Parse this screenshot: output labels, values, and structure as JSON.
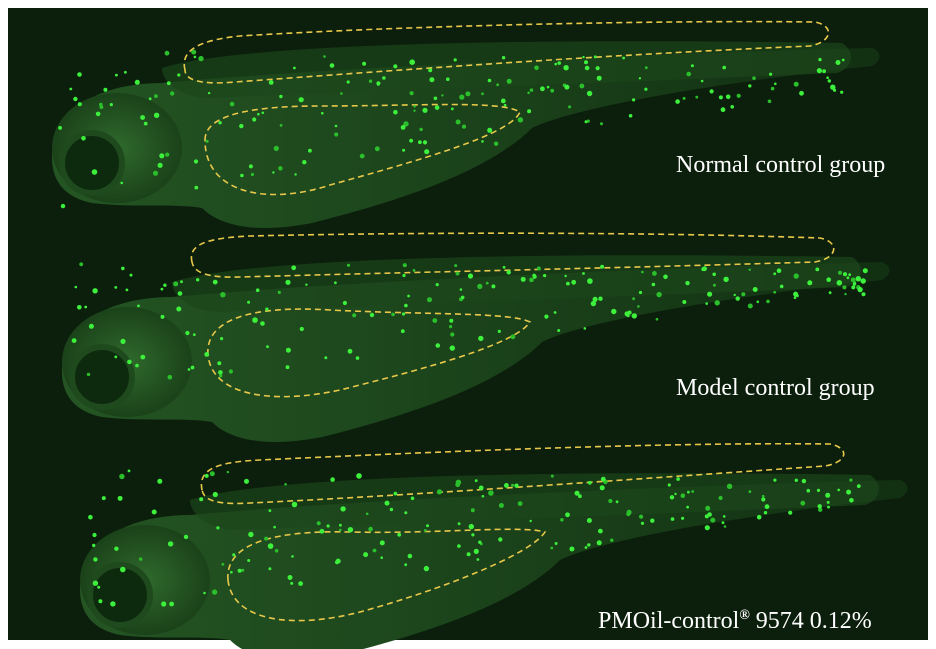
{
  "labels": [
    "Normal control group",
    "Model control group",
    {
      "name": "PMOil-control",
      "mark": "®",
      "rest": " 9574 0.12%"
    }
  ]
}
